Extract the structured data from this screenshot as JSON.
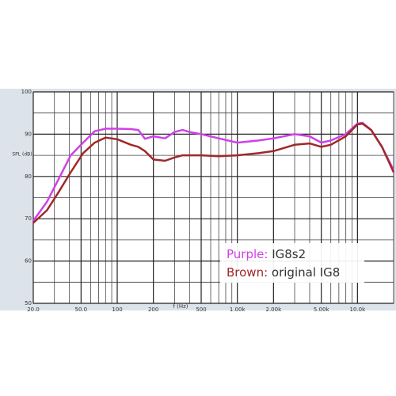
{
  "chart_data": {
    "type": "line",
    "log_x": true,
    "grid": true,
    "x_label": "f (Hz)",
    "y_label": "SPL (dB)",
    "x": [
      20,
      26,
      32,
      41,
      52,
      65,
      80,
      100,
      130,
      150,
      170,
      200,
      250,
      300,
      350,
      400,
      500,
      700,
      1000,
      1500,
      2000,
      3000,
      4000,
      5000,
      6000,
      8000,
      10000,
      11000,
      13000,
      16000,
      20000
    ],
    "series": [
      {
        "name": "IG8s2",
        "label_prefix": "Purple:",
        "color": "#d040e8",
        "values": [
          69.5,
          74,
          79,
          85,
          88,
          90.7,
          91.3,
          91.3,
          91.2,
          91,
          88.9,
          89.5,
          89,
          90.5,
          91,
          90.5,
          90,
          89,
          88,
          88.5,
          89,
          90,
          89.5,
          88,
          88.5,
          90,
          92.5,
          92.7,
          91,
          87,
          81.5
        ]
      },
      {
        "name": "original IG8",
        "label_prefix": "Brown:",
        "color": "#a0282a",
        "values": [
          69,
          72,
          76,
          81,
          85.5,
          88,
          89.2,
          88.8,
          87.5,
          87,
          86,
          84,
          83.7,
          84.5,
          85,
          85,
          85,
          84.8,
          85,
          85.5,
          86,
          87.5,
          87.8,
          87,
          87.5,
          89.5,
          92.3,
          92.5,
          91,
          87,
          81
        ]
      }
    ],
    "xlim": [
      20,
      20000
    ],
    "ylim": [
      50,
      100
    ],
    "xticks": [
      {
        "value": 20,
        "label": "20.0"
      },
      {
        "value": 50,
        "label": "50.0"
      },
      100,
      200,
      500,
      {
        "value": 1000,
        "label": "1.00k"
      },
      {
        "value": 2000,
        "label": "2.00k"
      },
      {
        "value": 5000,
        "label": "5.00k"
      },
      {
        "value": 10000,
        "label": "10.0k"
      }
    ],
    "minor_xticks": [
      30,
      40,
      60,
      70,
      80,
      90,
      300,
      400,
      600,
      700,
      800,
      900,
      3000,
      4000,
      6000,
      7000,
      8000,
      9000,
      20000
    ],
    "yticks": [
      50,
      60,
      70,
      80,
      90,
      100
    ],
    "minor_yticks": [
      55,
      65,
      75,
      85,
      95
    ]
  }
}
